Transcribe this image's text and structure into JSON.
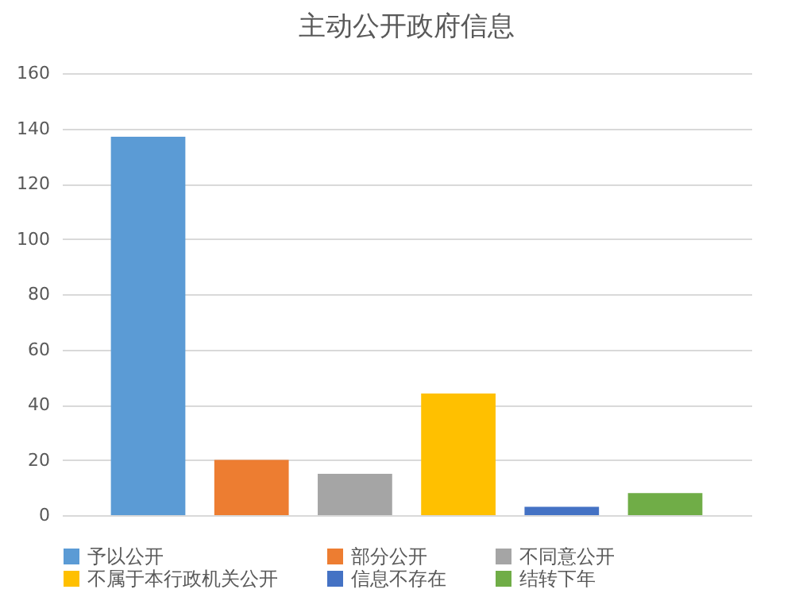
{
  "chart_data": {
    "type": "bar",
    "title": "主动公开政府信息",
    "categories": [
      null
    ],
    "series": [
      {
        "name": "予以公开",
        "color": "#5b9bd5",
        "values": [
          137
        ]
      },
      {
        "name": "部分公开",
        "color": "#ed7d31",
        "values": [
          20
        ]
      },
      {
        "name": "不同意公开",
        "color": "#a5a5a5",
        "values": [
          15
        ]
      },
      {
        "name": "不属于本行政机关公开",
        "color": "#ffc000",
        "values": [
          44
        ]
      },
      {
        "name": "信息不存在",
        "color": "#4472c4",
        "values": [
          3
        ]
      },
      {
        "name": "结转下年",
        "color": "#70ad47",
        "values": [
          8
        ]
      }
    ],
    "ylim": [
      0,
      160
    ],
    "yticks": [
      0,
      20,
      40,
      60,
      80,
      100,
      120,
      140,
      160
    ],
    "grid": "y",
    "legend": "bottom"
  }
}
